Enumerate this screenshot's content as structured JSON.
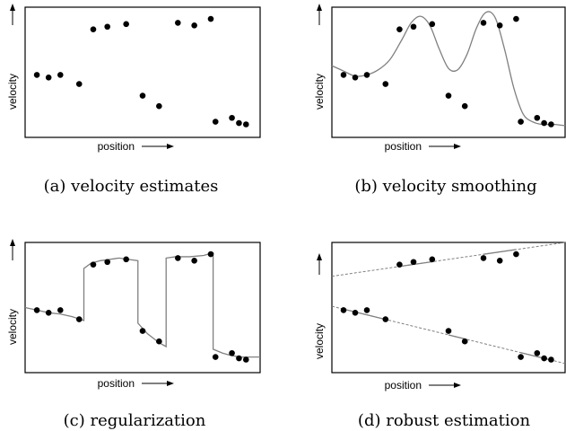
{
  "chart_data": [
    {
      "type": "scatter",
      "panel": "a",
      "caption": "(a) velocity estimates",
      "xlabel": "position",
      "ylabel": "velocity",
      "xlim": [
        0,
        100
      ],
      "ylim": [
        0,
        100
      ],
      "points": {
        "x": [
          5,
          10,
          15,
          23,
          29,
          35,
          43,
          50,
          57,
          65,
          72,
          79,
          81,
          88,
          91,
          94
        ],
        "y": [
          48,
          46,
          48,
          41,
          83,
          85,
          87,
          32,
          24,
          88,
          86,
          91,
          12,
          15,
          11,
          10
        ]
      },
      "overlay": "none"
    },
    {
      "type": "scatter",
      "panel": "b",
      "caption": "(b) velocity smoothing",
      "xlabel": "position",
      "ylabel": "velocity",
      "xlim": [
        0,
        100
      ],
      "ylim": [
        0,
        100
      ],
      "points": {
        "x": [
          5,
          10,
          15,
          23,
          29,
          35,
          43,
          50,
          57,
          65,
          72,
          79,
          81,
          88,
          91,
          94
        ],
        "y": [
          48,
          46,
          48,
          41,
          83,
          85,
          87,
          32,
          24,
          88,
          86,
          91,
          12,
          15,
          11,
          10
        ]
      },
      "overlay": "smooth-curve",
      "curve": {
        "x": [
          0,
          5,
          10,
          15,
          20,
          25,
          30,
          34,
          38,
          42,
          46,
          50,
          54,
          58,
          62,
          66,
          70,
          74,
          78,
          82,
          86,
          90,
          95,
          100
        ],
        "y": [
          55,
          51,
          47,
          48,
          52,
          60,
          75,
          88,
          93,
          86,
          68,
          53,
          52,
          64,
          84,
          96,
          92,
          68,
          38,
          18,
          12,
          10,
          10,
          9
        ]
      }
    },
    {
      "type": "scatter",
      "panel": "c",
      "caption": "(c) regularization",
      "xlabel": "position",
      "ylabel": "velocity",
      "xlim": [
        0,
        100
      ],
      "ylim": [
        0,
        100
      ],
      "points": {
        "x": [
          5,
          10,
          15,
          23,
          29,
          35,
          43,
          50,
          57,
          65,
          72,
          79,
          81,
          88,
          91,
          94
        ],
        "y": [
          48,
          46,
          48,
          41,
          83,
          85,
          87,
          32,
          24,
          88,
          86,
          91,
          12,
          15,
          11,
          10
        ]
      },
      "overlay": "piecewise-fit",
      "curve": {
        "x": [
          0,
          5,
          10,
          15,
          20,
          25,
          25,
          28,
          32,
          36,
          40,
          44,
          48,
          48,
          52,
          57,
          60,
          60,
          64,
          70,
          76,
          78,
          80,
          80,
          84,
          88,
          92,
          96,
          100
        ],
        "y": [
          50,
          48,
          46,
          45,
          43,
          40,
          80,
          84,
          86,
          87,
          88,
          87,
          86,
          38,
          30,
          23,
          20,
          88,
          89,
          89,
          90,
          91,
          92,
          18,
          15,
          13,
          12,
          12,
          12
        ]
      }
    },
    {
      "type": "scatter",
      "panel": "d",
      "caption": "(d) robust estimation",
      "xlabel": "position",
      "ylabel": "velocity",
      "xlim": [
        0,
        100
      ],
      "ylim": [
        0,
        100
      ],
      "points": {
        "x": [
          5,
          10,
          15,
          23,
          29,
          35,
          43,
          50,
          57,
          65,
          72,
          79,
          81,
          88,
          91,
          94
        ],
        "y": [
          48,
          46,
          48,
          41,
          83,
          85,
          87,
          32,
          24,
          88,
          86,
          91,
          12,
          15,
          11,
          10
        ]
      },
      "overlay": "two-lines",
      "lines": [
        {
          "x1": 0,
          "y1": 74,
          "x2": 100,
          "y2": 100
        },
        {
          "x1": 0,
          "y1": 51,
          "x2": 100,
          "y2": 7
        }
      ]
    }
  ]
}
